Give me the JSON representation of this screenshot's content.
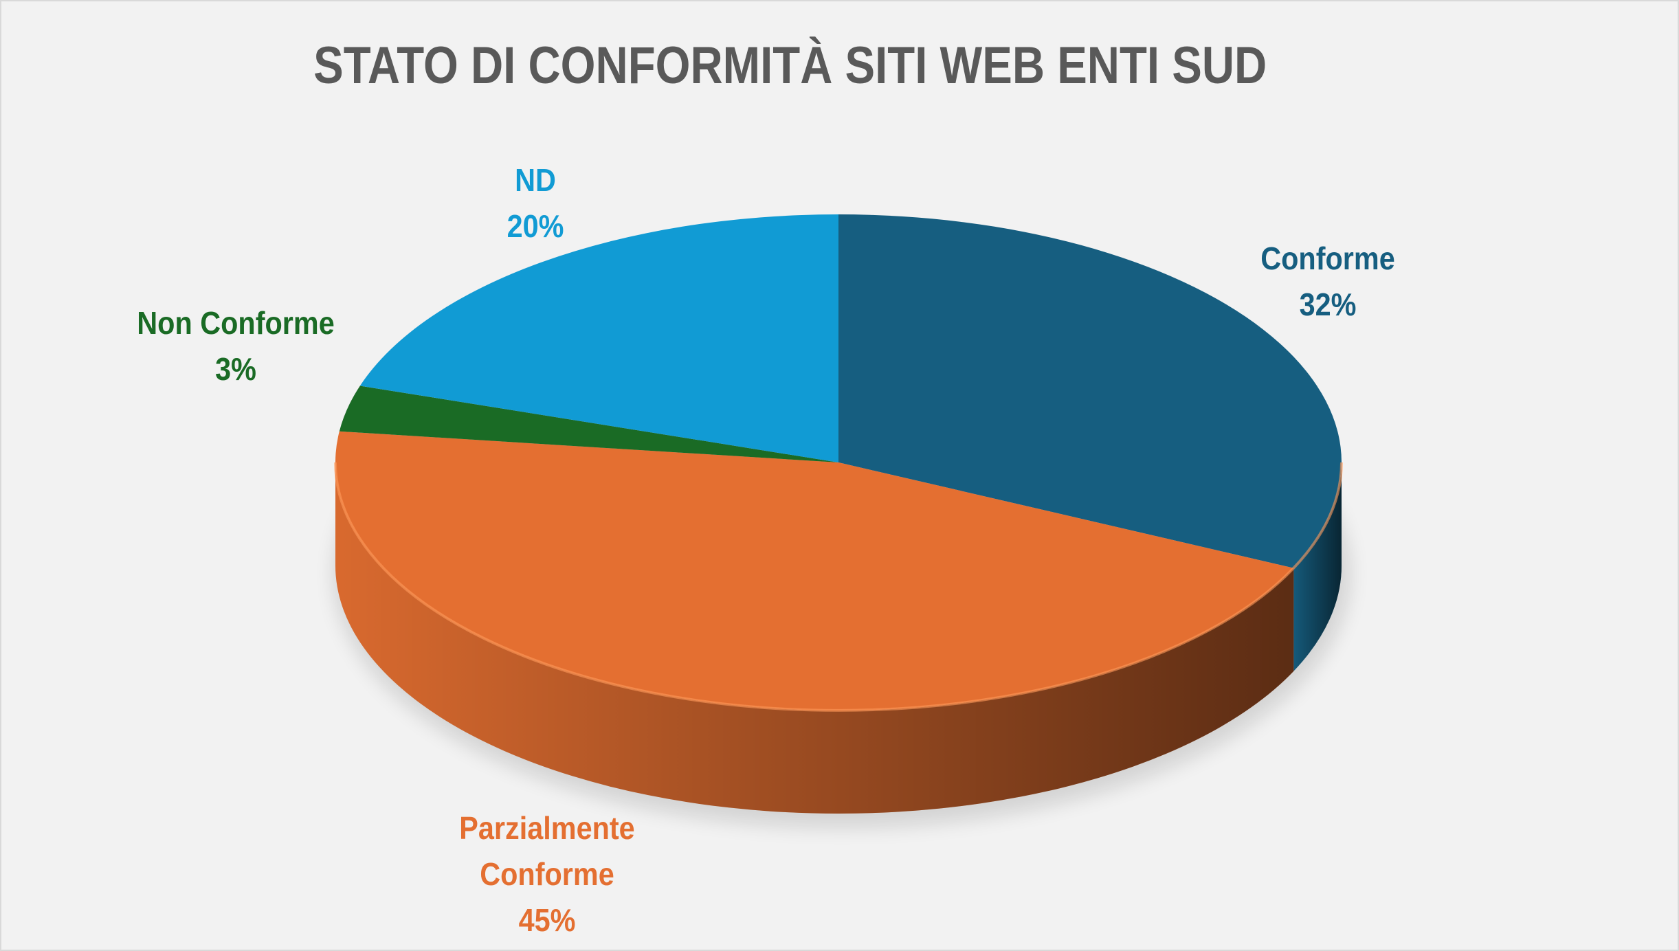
{
  "chart_data": {
    "type": "pie",
    "style": "3d",
    "title": "STATO DI CONFORMITÀ SITI WEB ENTI SUD",
    "categories": [
      "Conforme",
      "Parzialmente Conforme",
      "Non Conforme",
      "ND"
    ],
    "values": [
      32,
      45,
      3,
      20
    ],
    "unit": "%",
    "slices": [
      {
        "name": "Conforme",
        "value": 32,
        "label": "32%",
        "color": "#165e80"
      },
      {
        "name": "Parzialmente Conforme",
        "label_line1": "Parzialmente",
        "label_line2": "Conforme",
        "value": 45,
        "label": "45%",
        "color": "#e46f31"
      },
      {
        "name": "Non Conforme",
        "value": 3,
        "label": "3%",
        "color": "#1a6b25"
      },
      {
        "name": "ND",
        "value": 20,
        "label": "20%",
        "color": "#119bd4"
      }
    ],
    "legend": "none",
    "title_color": "#595959",
    "background": "#f2f2f2"
  }
}
